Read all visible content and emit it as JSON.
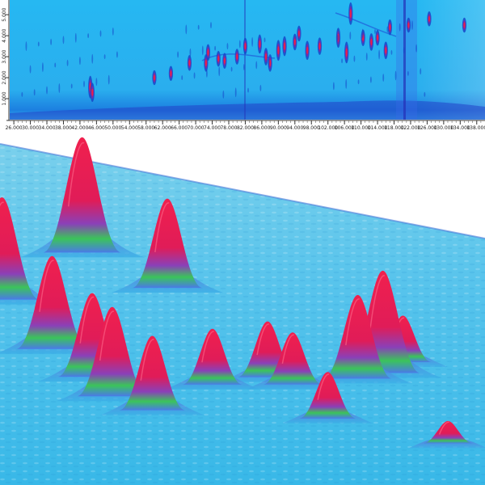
{
  "chart_data": [
    {
      "type": "heatmap",
      "title": "",
      "xlabel": "",
      "ylabel": "",
      "x_ticks": [
        "26.000",
        "30.000",
        "34.000",
        "38.000",
        "42.000",
        "46.000",
        "50.000",
        "54.000",
        "58.000",
        "62.000",
        "66.000",
        "70.000",
        "74.000",
        "78.000",
        "82.000",
        "86.000",
        "90.000",
        "94.000",
        "98.000",
        "102.000",
        "106.000",
        "110.000",
        "114.000",
        "118.000",
        "122.000",
        "126.000",
        "130.000",
        "134.000",
        "138.000"
      ],
      "y_ticks": [
        "1.000",
        "2.000",
        "3.000",
        "4.000",
        "5.000"
      ],
      "xlim": [
        25.0,
        140.0
      ],
      "ylim": [
        0.0,
        5.7
      ],
      "colors": {
        "background": "#2ab4f0",
        "low": "#1646c8",
        "mid": "#7a2aa8",
        "high": "#e8204a"
      },
      "peaks": [
        {
          "x": 44.5,
          "y": 1.55,
          "intensity": 0.9
        },
        {
          "x": 45.0,
          "y": 1.3,
          "intensity": 0.7
        },
        {
          "x": 72.5,
          "y": 2.7,
          "intensity": 0.6
        },
        {
          "x": 73.0,
          "y": 3.2,
          "intensity": 0.55
        },
        {
          "x": 80.0,
          "y": 3.0,
          "intensity": 0.5
        },
        {
          "x": 82.0,
          "y": 3.5,
          "intensity": 0.55
        },
        {
          "x": 85.5,
          "y": 3.6,
          "intensity": 0.7
        },
        {
          "x": 87.0,
          "y": 3.0,
          "intensity": 0.6
        },
        {
          "x": 88.0,
          "y": 2.7,
          "intensity": 0.6
        },
        {
          "x": 90.0,
          "y": 3.3,
          "intensity": 0.8
        },
        {
          "x": 91.5,
          "y": 3.5,
          "intensity": 0.75
        },
        {
          "x": 94.0,
          "y": 3.7,
          "intensity": 0.55
        },
        {
          "x": 95.0,
          "y": 4.1,
          "intensity": 0.5
        },
        {
          "x": 97.0,
          "y": 3.3,
          "intensity": 0.7
        },
        {
          "x": 100.0,
          "y": 3.5,
          "intensity": 0.6
        },
        {
          "x": 104.5,
          "y": 3.9,
          "intensity": 0.75
        },
        {
          "x": 106.5,
          "y": 3.2,
          "intensity": 0.85
        },
        {
          "x": 107.5,
          "y": 5.05,
          "intensity": 0.9
        },
        {
          "x": 110.5,
          "y": 3.9,
          "intensity": 0.55
        },
        {
          "x": 112.5,
          "y": 3.7,
          "intensity": 0.6
        },
        {
          "x": 114.0,
          "y": 3.9,
          "intensity": 0.5
        },
        {
          "x": 116.0,
          "y": 3.3,
          "intensity": 0.6
        },
        {
          "x": 117.0,
          "y": 4.4,
          "intensity": 0.5
        },
        {
          "x": 121.5,
          "y": 4.5,
          "intensity": 0.45
        },
        {
          "x": 126.5,
          "y": 4.8,
          "intensity": 0.45
        },
        {
          "x": 135.0,
          "y": 4.5,
          "intensity": 0.45
        },
        {
          "x": 75.5,
          "y": 2.9,
          "intensity": 0.5
        },
        {
          "x": 77.0,
          "y": 2.8,
          "intensity": 0.5
        },
        {
          "x": 68.5,
          "y": 2.7,
          "intensity": 0.5
        },
        {
          "x": 64.0,
          "y": 2.2,
          "intensity": 0.45
        },
        {
          "x": 60.0,
          "y": 2.0,
          "intensity": 0.45
        }
      ]
    },
    {
      "type": "surface",
      "title": "",
      "colors": {
        "base": "#3ab8e6",
        "ridge": "#6a5fd8",
        "peak": "#ee1d4e",
        "accent": "#4ac85a"
      },
      "peaks": [
        {
          "x": 0.18,
          "y": 0.3,
          "height": 0.62
        },
        {
          "x": 0.35,
          "y": 0.38,
          "height": 0.48
        },
        {
          "x": 0.02,
          "y": 0.48,
          "height": 0.55
        },
        {
          "x": 0.12,
          "y": 0.62,
          "height": 0.5
        },
        {
          "x": 0.2,
          "y": 0.7,
          "height": 0.45
        },
        {
          "x": 0.24,
          "y": 0.76,
          "height": 0.48
        },
        {
          "x": 0.32,
          "y": 0.8,
          "height": 0.4
        },
        {
          "x": 0.44,
          "y": 0.7,
          "height": 0.3
        },
        {
          "x": 0.55,
          "y": 0.66,
          "height": 0.3
        },
        {
          "x": 0.6,
          "y": 0.68,
          "height": 0.28
        },
        {
          "x": 0.73,
          "y": 0.64,
          "height": 0.45
        },
        {
          "x": 0.78,
          "y": 0.61,
          "height": 0.55
        },
        {
          "x": 0.67,
          "y": 0.8,
          "height": 0.25
        },
        {
          "x": 0.82,
          "y": 0.56,
          "height": 0.25
        },
        {
          "x": 0.91,
          "y": 0.88,
          "height": 0.12
        }
      ]
    }
  ]
}
